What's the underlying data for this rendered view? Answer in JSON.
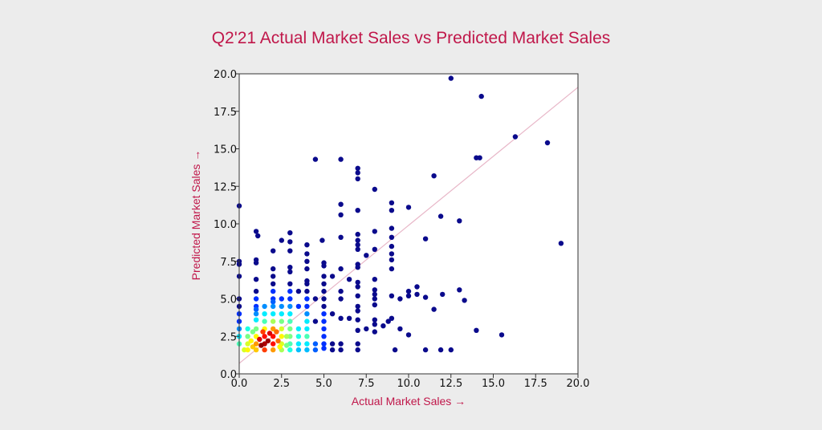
{
  "chart_data": {
    "type": "scatter",
    "title": "Q2'21 Actual Market Sales vs Predicted Market Sales",
    "xlabel": "Actual Market Sales →",
    "ylabel": "Predicted Market Sales →",
    "xlim": [
      0,
      20
    ],
    "ylim": [
      0,
      20
    ],
    "x_ticks": [
      "0.0",
      "2.5",
      "5.0",
      "7.5",
      "10.0",
      "12.5",
      "15.0",
      "17.5",
      "20.0"
    ],
    "y_ticks": [
      "0.0",
      "2.5",
      "5.0",
      "7.5",
      "10.0",
      "12.5",
      "15.0",
      "17.5",
      "20.0"
    ],
    "grid": false,
    "colormap": "jet (point density)",
    "colors": {
      "title": "#c0174a",
      "reference_line": "#e8b7c8",
      "sparse_point": "#0a0a8c",
      "background": "#ececec",
      "plot_background": "#ffffff"
    },
    "reference_line": {
      "x": [
        0,
        20
      ],
      "y": [
        0.7,
        19.1
      ]
    },
    "points": [
      {
        "x": 0.0,
        "y": 11.2,
        "d": 0
      },
      {
        "x": 0.0,
        "y": 7.5,
        "d": 0
      },
      {
        "x": 0.0,
        "y": 7.3,
        "d": 0
      },
      {
        "x": 0.0,
        "y": 6.5,
        "d": 0
      },
      {
        "x": 0.0,
        "y": 5.0,
        "d": 0
      },
      {
        "x": 0.0,
        "y": 4.5,
        "d": 0
      },
      {
        "x": 0.0,
        "y": 4.0,
        "d": 0.1
      },
      {
        "x": 0.0,
        "y": 3.5,
        "d": 0.1
      },
      {
        "x": 0.0,
        "y": 3.0,
        "d": 0.2
      },
      {
        "x": 0.0,
        "y": 2.5,
        "d": 0.3
      },
      {
        "x": 0.0,
        "y": 2.0,
        "d": 0.4
      },
      {
        "x": 1.0,
        "y": 9.5,
        "d": 0
      },
      {
        "x": 1.1,
        "y": 9.2,
        "d": 0
      },
      {
        "x": 1.0,
        "y": 7.6,
        "d": 0
      },
      {
        "x": 1.0,
        "y": 7.4,
        "d": 0
      },
      {
        "x": 1.0,
        "y": 6.3,
        "d": 0
      },
      {
        "x": 1.0,
        "y": 5.5,
        "d": 0
      },
      {
        "x": 1.0,
        "y": 5.0,
        "d": 0.1
      },
      {
        "x": 1.0,
        "y": 4.5,
        "d": 0.1
      },
      {
        "x": 1.0,
        "y": 4.0,
        "d": 0.2
      },
      {
        "x": 1.0,
        "y": 3.6,
        "d": 0.3
      },
      {
        "x": 2.0,
        "y": 8.2,
        "d": 0
      },
      {
        "x": 2.0,
        "y": 7.0,
        "d": 0
      },
      {
        "x": 2.0,
        "y": 6.5,
        "d": 0
      },
      {
        "x": 2.0,
        "y": 6.0,
        "d": 0
      },
      {
        "x": 2.0,
        "y": 5.5,
        "d": 0.1
      },
      {
        "x": 2.0,
        "y": 5.0,
        "d": 0.1
      },
      {
        "x": 2.0,
        "y": 4.5,
        "d": 0.2
      },
      {
        "x": 2.0,
        "y": 4.0,
        "d": 0.3
      },
      {
        "x": 2.5,
        "y": 8.9,
        "d": 0
      },
      {
        "x": 3.0,
        "y": 9.4,
        "d": 0
      },
      {
        "x": 3.0,
        "y": 8.8,
        "d": 0
      },
      {
        "x": 3.0,
        "y": 8.2,
        "d": 0
      },
      {
        "x": 3.0,
        "y": 7.1,
        "d": 0
      },
      {
        "x": 3.0,
        "y": 6.8,
        "d": 0
      },
      {
        "x": 3.0,
        "y": 6.0,
        "d": 0
      },
      {
        "x": 3.0,
        "y": 5.5,
        "d": 0.1
      },
      {
        "x": 3.0,
        "y": 5.0,
        "d": 0.1
      },
      {
        "x": 3.0,
        "y": 4.5,
        "d": 0.2
      },
      {
        "x": 3.0,
        "y": 4.0,
        "d": 0.3
      },
      {
        "x": 3.0,
        "y": 3.5,
        "d": 0.4
      },
      {
        "x": 3.5,
        "y": 5.5,
        "d": 0
      },
      {
        "x": 3.5,
        "y": 4.5,
        "d": 0.1
      },
      {
        "x": 3.5,
        "y": 3.0,
        "d": 0.3
      },
      {
        "x": 4.0,
        "y": 8.6,
        "d": 0
      },
      {
        "x": 4.0,
        "y": 8.0,
        "d": 0
      },
      {
        "x": 4.0,
        "y": 7.5,
        "d": 0
      },
      {
        "x": 4.0,
        "y": 7.0,
        "d": 0
      },
      {
        "x": 4.0,
        "y": 6.2,
        "d": 0
      },
      {
        "x": 4.0,
        "y": 6.0,
        "d": 0
      },
      {
        "x": 4.0,
        "y": 5.5,
        "d": 0
      },
      {
        "x": 4.0,
        "y": 5.0,
        "d": 0.1
      },
      {
        "x": 4.0,
        "y": 4.5,
        "d": 0.1
      },
      {
        "x": 4.0,
        "y": 4.0,
        "d": 0.2
      },
      {
        "x": 4.0,
        "y": 3.5,
        "d": 0.3
      },
      {
        "x": 4.0,
        "y": 3.0,
        "d": 0.3
      },
      {
        "x": 4.0,
        "y": 2.5,
        "d": 0.4
      },
      {
        "x": 4.5,
        "y": 14.3,
        "d": 0
      },
      {
        "x": 4.5,
        "y": 5.0,
        "d": 0
      },
      {
        "x": 4.5,
        "y": 3.5,
        "d": 0
      },
      {
        "x": 4.9,
        "y": 8.9,
        "d": 0
      },
      {
        "x": 5.0,
        "y": 7.4,
        "d": 0
      },
      {
        "x": 5.0,
        "y": 7.2,
        "d": 0
      },
      {
        "x": 5.0,
        "y": 6.5,
        "d": 0
      },
      {
        "x": 5.0,
        "y": 6.0,
        "d": 0
      },
      {
        "x": 5.0,
        "y": 5.5,
        "d": 0
      },
      {
        "x": 5.0,
        "y": 5.0,
        "d": 0
      },
      {
        "x": 5.0,
        "y": 4.5,
        "d": 0
      },
      {
        "x": 5.0,
        "y": 4.0,
        "d": 0.1
      },
      {
        "x": 5.0,
        "y": 3.5,
        "d": 0.1
      },
      {
        "x": 5.0,
        "y": 3.0,
        "d": 0.1
      },
      {
        "x": 5.0,
        "y": 2.5,
        "d": 0.1
      },
      {
        "x": 5.0,
        "y": 2.0,
        "d": 0.1
      },
      {
        "x": 5.0,
        "y": 1.7,
        "d": 0.1
      },
      {
        "x": 5.5,
        "y": 6.5,
        "d": 0
      },
      {
        "x": 5.5,
        "y": 4.0,
        "d": 0
      },
      {
        "x": 5.5,
        "y": 2.0,
        "d": 0
      },
      {
        "x": 5.5,
        "y": 1.6,
        "d": 0
      },
      {
        "x": 6.0,
        "y": 14.3,
        "d": 0
      },
      {
        "x": 6.0,
        "y": 11.3,
        "d": 0
      },
      {
        "x": 6.0,
        "y": 10.6,
        "d": 0
      },
      {
        "x": 6.0,
        "y": 9.1,
        "d": 0
      },
      {
        "x": 6.0,
        "y": 7.0,
        "d": 0
      },
      {
        "x": 6.0,
        "y": 5.5,
        "d": 0
      },
      {
        "x": 6.0,
        "y": 5.0,
        "d": 0
      },
      {
        "x": 6.0,
        "y": 3.7,
        "d": 0
      },
      {
        "x": 6.0,
        "y": 2.0,
        "d": 0
      },
      {
        "x": 6.0,
        "y": 1.6,
        "d": 0
      },
      {
        "x": 6.5,
        "y": 6.3,
        "d": 0
      },
      {
        "x": 6.5,
        "y": 3.7,
        "d": 0
      },
      {
        "x": 7.0,
        "y": 13.7,
        "d": 0
      },
      {
        "x": 7.0,
        "y": 13.4,
        "d": 0
      },
      {
        "x": 7.0,
        "y": 13.0,
        "d": 0
      },
      {
        "x": 7.0,
        "y": 10.9,
        "d": 0
      },
      {
        "x": 7.0,
        "y": 9.3,
        "d": 0
      },
      {
        "x": 7.0,
        "y": 8.9,
        "d": 0
      },
      {
        "x": 7.0,
        "y": 8.6,
        "d": 0
      },
      {
        "x": 7.0,
        "y": 8.3,
        "d": 0
      },
      {
        "x": 7.0,
        "y": 7.3,
        "d": 0
      },
      {
        "x": 7.0,
        "y": 7.1,
        "d": 0
      },
      {
        "x": 7.0,
        "y": 6.1,
        "d": 0
      },
      {
        "x": 7.0,
        "y": 5.8,
        "d": 0
      },
      {
        "x": 7.0,
        "y": 5.2,
        "d": 0
      },
      {
        "x": 7.0,
        "y": 4.5,
        "d": 0
      },
      {
        "x": 7.0,
        "y": 4.2,
        "d": 0
      },
      {
        "x": 7.0,
        "y": 3.6,
        "d": 0
      },
      {
        "x": 7.0,
        "y": 2.9,
        "d": 0
      },
      {
        "x": 7.0,
        "y": 2.0,
        "d": 0
      },
      {
        "x": 7.0,
        "y": 1.6,
        "d": 0
      },
      {
        "x": 7.5,
        "y": 7.9,
        "d": 0
      },
      {
        "x": 7.5,
        "y": 3.0,
        "d": 0
      },
      {
        "x": 8.0,
        "y": 12.3,
        "d": 0
      },
      {
        "x": 8.0,
        "y": 9.5,
        "d": 0
      },
      {
        "x": 8.0,
        "y": 8.3,
        "d": 0
      },
      {
        "x": 8.0,
        "y": 6.3,
        "d": 0
      },
      {
        "x": 8.0,
        "y": 5.6,
        "d": 0
      },
      {
        "x": 8.0,
        "y": 5.3,
        "d": 0
      },
      {
        "x": 8.0,
        "y": 5.0,
        "d": 0
      },
      {
        "x": 8.0,
        "y": 4.6,
        "d": 0
      },
      {
        "x": 8.0,
        "y": 3.6,
        "d": 0
      },
      {
        "x": 8.0,
        "y": 3.3,
        "d": 0
      },
      {
        "x": 8.0,
        "y": 2.8,
        "d": 0
      },
      {
        "x": 8.8,
        "y": 3.5,
        "d": 0
      },
      {
        "x": 8.5,
        "y": 3.2,
        "d": 0
      },
      {
        "x": 9.0,
        "y": 11.4,
        "d": 0
      },
      {
        "x": 9.0,
        "y": 10.9,
        "d": 0
      },
      {
        "x": 9.0,
        "y": 9.7,
        "d": 0
      },
      {
        "x": 9.0,
        "y": 9.1,
        "d": 0
      },
      {
        "x": 9.0,
        "y": 8.5,
        "d": 0
      },
      {
        "x": 9.0,
        "y": 8.0,
        "d": 0
      },
      {
        "x": 9.0,
        "y": 7.6,
        "d": 0
      },
      {
        "x": 9.0,
        "y": 7.0,
        "d": 0
      },
      {
        "x": 9.0,
        "y": 5.2,
        "d": 0
      },
      {
        "x": 9.0,
        "y": 3.7,
        "d": 0
      },
      {
        "x": 9.2,
        "y": 1.6,
        "d": 0
      },
      {
        "x": 9.5,
        "y": 5.0,
        "d": 0
      },
      {
        "x": 9.5,
        "y": 3.0,
        "d": 0
      },
      {
        "x": 10.0,
        "y": 11.1,
        "d": 0
      },
      {
        "x": 10.0,
        "y": 5.5,
        "d": 0
      },
      {
        "x": 10.0,
        "y": 5.2,
        "d": 0
      },
      {
        "x": 10.0,
        "y": 2.6,
        "d": 0
      },
      {
        "x": 10.5,
        "y": 5.8,
        "d": 0
      },
      {
        "x": 10.5,
        "y": 5.3,
        "d": 0
      },
      {
        "x": 11.0,
        "y": 9.0,
        "d": 0
      },
      {
        "x": 11.0,
        "y": 5.1,
        "d": 0
      },
      {
        "x": 11.0,
        "y": 1.6,
        "d": 0
      },
      {
        "x": 11.5,
        "y": 13.2,
        "d": 0
      },
      {
        "x": 11.5,
        "y": 4.3,
        "d": 0
      },
      {
        "x": 11.9,
        "y": 10.5,
        "d": 0
      },
      {
        "x": 12.0,
        "y": 5.3,
        "d": 0
      },
      {
        "x": 11.9,
        "y": 1.6,
        "d": 0
      },
      {
        "x": 12.5,
        "y": 19.7,
        "d": 0
      },
      {
        "x": 12.5,
        "y": 1.6,
        "d": 0
      },
      {
        "x": 13.0,
        "y": 10.2,
        "d": 0
      },
      {
        "x": 13.0,
        "y": 5.6,
        "d": 0
      },
      {
        "x": 13.3,
        "y": 4.9,
        "d": 0
      },
      {
        "x": 14.0,
        "y": 14.4,
        "d": 0
      },
      {
        "x": 14.2,
        "y": 14.4,
        "d": 0
      },
      {
        "x": 14.3,
        "y": 18.5,
        "d": 0
      },
      {
        "x": 14.0,
        "y": 2.9,
        "d": 0
      },
      {
        "x": 15.5,
        "y": 2.6,
        "d": 0
      },
      {
        "x": 16.3,
        "y": 15.8,
        "d": 0
      },
      {
        "x": 18.2,
        "y": 15.4,
        "d": 0
      },
      {
        "x": 19.0,
        "y": 8.7,
        "d": 0
      },
      {
        "x": 1.0,
        "y": 3.0,
        "d": 0.45
      },
      {
        "x": 1.0,
        "y": 2.5,
        "d": 0.6
      },
      {
        "x": 1.0,
        "y": 2.0,
        "d": 0.7
      },
      {
        "x": 1.0,
        "y": 1.6,
        "d": 0.65
      },
      {
        "x": 1.5,
        "y": 3.5,
        "d": 0.4
      },
      {
        "x": 1.5,
        "y": 3.0,
        "d": 0.6
      },
      {
        "x": 1.5,
        "y": 2.5,
        "d": 0.85
      },
      {
        "x": 1.5,
        "y": 2.0,
        "d": 0.95
      },
      {
        "x": 1.5,
        "y": 1.6,
        "d": 0.8
      },
      {
        "x": 1.2,
        "y": 2.3,
        "d": 0.9
      },
      {
        "x": 1.3,
        "y": 1.9,
        "d": 0.98
      },
      {
        "x": 1.7,
        "y": 2.2,
        "d": 0.97
      },
      {
        "x": 1.8,
        "y": 2.7,
        "d": 0.9
      },
      {
        "x": 1.4,
        "y": 2.8,
        "d": 0.8
      },
      {
        "x": 2.0,
        "y": 3.5,
        "d": 0.5
      },
      {
        "x": 2.0,
        "y": 3.0,
        "d": 0.7
      },
      {
        "x": 2.0,
        "y": 2.5,
        "d": 0.85
      },
      {
        "x": 2.0,
        "y": 2.0,
        "d": 0.85
      },
      {
        "x": 2.0,
        "y": 1.6,
        "d": 0.7
      },
      {
        "x": 2.2,
        "y": 2.8,
        "d": 0.75
      },
      {
        "x": 2.3,
        "y": 2.2,
        "d": 0.75
      },
      {
        "x": 2.4,
        "y": 1.8,
        "d": 0.6
      },
      {
        "x": 0.5,
        "y": 3.0,
        "d": 0.35
      },
      {
        "x": 0.5,
        "y": 2.5,
        "d": 0.45
      },
      {
        "x": 0.5,
        "y": 2.0,
        "d": 0.55
      },
      {
        "x": 0.5,
        "y": 1.6,
        "d": 0.6
      },
      {
        "x": 0.3,
        "y": 1.6,
        "d": 0.55
      },
      {
        "x": 0.7,
        "y": 2.2,
        "d": 0.6
      },
      {
        "x": 0.8,
        "y": 1.8,
        "d": 0.65
      },
      {
        "x": 0.8,
        "y": 2.8,
        "d": 0.45
      },
      {
        "x": 2.5,
        "y": 3.5,
        "d": 0.45
      },
      {
        "x": 2.5,
        "y": 3.0,
        "d": 0.55
      },
      {
        "x": 2.5,
        "y": 2.5,
        "d": 0.6
      },
      {
        "x": 2.5,
        "y": 2.0,
        "d": 0.55
      },
      {
        "x": 2.5,
        "y": 1.6,
        "d": 0.5
      },
      {
        "x": 2.8,
        "y": 2.5,
        "d": 0.5
      },
      {
        "x": 2.8,
        "y": 1.9,
        "d": 0.45
      },
      {
        "x": 3.0,
        "y": 3.0,
        "d": 0.45
      },
      {
        "x": 3.0,
        "y": 2.5,
        "d": 0.45
      },
      {
        "x": 3.0,
        "y": 2.0,
        "d": 0.4
      },
      {
        "x": 3.0,
        "y": 1.6,
        "d": 0.35
      },
      {
        "x": 3.5,
        "y": 2.5,
        "d": 0.35
      },
      {
        "x": 3.5,
        "y": 2.0,
        "d": 0.3
      },
      {
        "x": 3.5,
        "y": 1.6,
        "d": 0.25
      },
      {
        "x": 4.0,
        "y": 2.0,
        "d": 0.3
      },
      {
        "x": 4.0,
        "y": 1.6,
        "d": 0.25
      },
      {
        "x": 4.5,
        "y": 2.0,
        "d": 0.15
      },
      {
        "x": 4.5,
        "y": 1.6,
        "d": 0.15
      },
      {
        "x": 1.5,
        "y": 4.0,
        "d": 0.3
      },
      {
        "x": 1.5,
        "y": 4.5,
        "d": 0.2
      },
      {
        "x": 2.5,
        "y": 4.0,
        "d": 0.3
      },
      {
        "x": 2.5,
        "y": 4.5,
        "d": 0.2
      },
      {
        "x": 2.5,
        "y": 5.0,
        "d": 0.1
      },
      {
        "x": 1.0,
        "y": 4.3,
        "d": 0.15
      },
      {
        "x": 2.0,
        "y": 4.8,
        "d": 0.15
      }
    ]
  }
}
